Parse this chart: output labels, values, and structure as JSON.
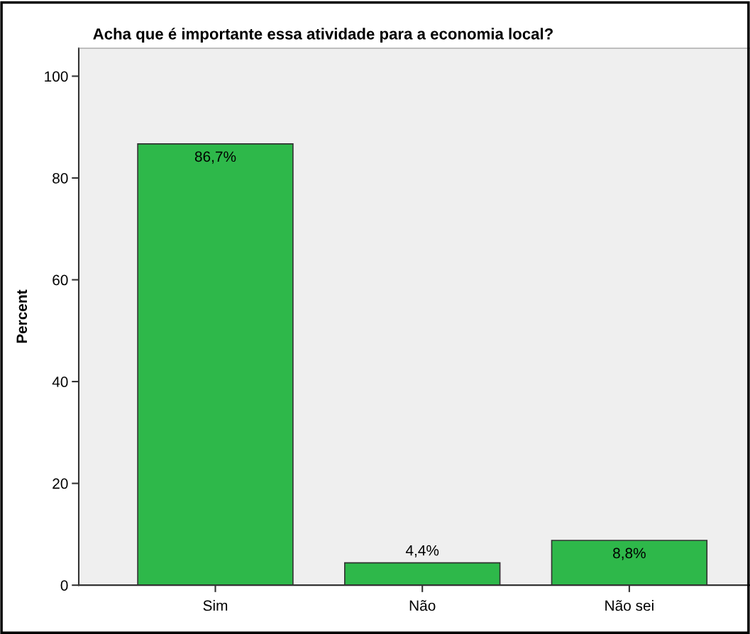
{
  "chart_data": {
    "type": "bar",
    "title": "Acha que é importante essa atividade para a economia local?",
    "ylabel": "Percent",
    "categories": [
      "Sim",
      "Não",
      "Não sei"
    ],
    "values": [
      86.7,
      4.4,
      8.8
    ],
    "value_labels": [
      "86,7%",
      "4,4%",
      "8,8%"
    ],
    "color": "#2eb84a",
    "ylim": [
      0,
      105.5
    ],
    "yticks": [
      0,
      20,
      40,
      60,
      80,
      100
    ],
    "grid": false,
    "legend": false
  }
}
